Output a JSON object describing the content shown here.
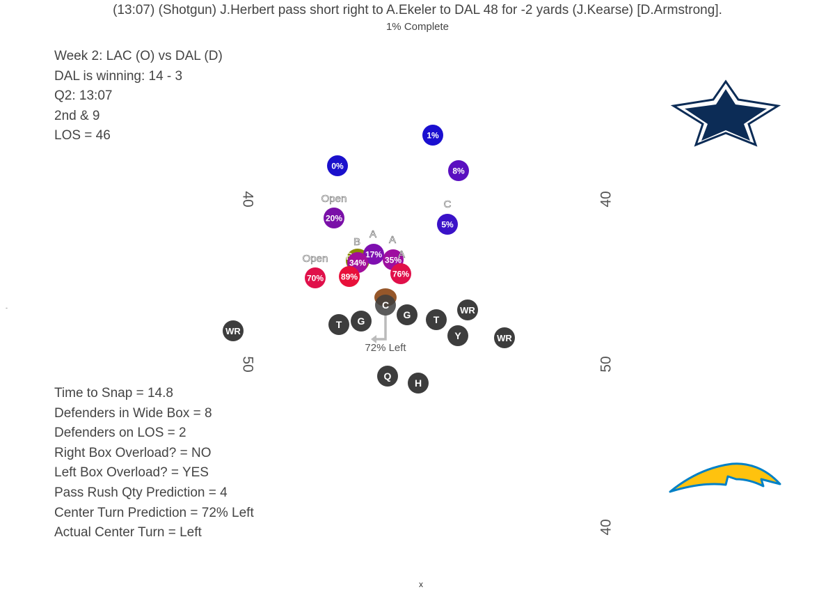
{
  "play_description": "(13:07) (Shotgun) J.Herbert pass short right to A.Ekeler to DAL 48 for -2 yards (J.Kearse) [D.Armstrong].",
  "progress_text": "1% Complete",
  "game_info": {
    "week": "Week 2: LAC (O) vs DAL (D)",
    "score": "DAL is winning: 14 - 3",
    "clock": "Q2: 13:07",
    "down": "2nd & 9",
    "los": "LOS = 46"
  },
  "stats": {
    "time_to_snap": "Time to Snap = 14.8",
    "defenders_wide_box": "Defenders in Wide Box = 8",
    "defenders_los": "Defenders on LOS = 2",
    "right_box_overload": "Right Box Overload? = NO",
    "left_box_overload": "Left Box Overload? = YES",
    "pass_rush_prediction": "Pass Rush Qty Prediction = 4",
    "center_turn_prediction": "Center Turn Prediction = 72% Left",
    "actual_center_turn": "Actual Center Turn = Left"
  },
  "yard_markers": {
    "top_left": "40",
    "top_right": "40",
    "mid_left": "50",
    "mid_right": "50",
    "bottom_right": "40"
  },
  "center_turn_label": "72% Left",
  "tick_label": "-",
  "x_mark": "x",
  "colors": {
    "offense": "#3d3d3d",
    "football": "#8B4513",
    "cowboys_navy": "#0c2c56",
    "chargers_gold": "#ffc20e",
    "chargers_blue": "#0080c6"
  },
  "defenders": [
    {
      "pct": "1%",
      "color": "#1a0fd0"
    },
    {
      "pct": "0%",
      "color": "#1a10cc"
    },
    {
      "pct": "8%",
      "color": "#5a0fc0"
    },
    {
      "pct": "20%",
      "color": "#7a10a8",
      "gap": "Open"
    },
    {
      "pct": "5%",
      "color": "#3a12c8",
      "gap": "C"
    },
    {
      "pct": "17%",
      "color": "#7e0fb0",
      "gap": "A"
    },
    {
      "pct": "35%",
      "color": "#9e0ea0",
      "gap": "A"
    },
    {
      "pct": "34%",
      "color": "#a20e9a",
      "gap": "B"
    },
    {
      "pct": "76%",
      "color": "#e0104a",
      "gap": "A"
    },
    {
      "pct": "70%",
      "color": "#e0104a",
      "gap": "Open"
    },
    {
      "pct": "89%",
      "color": "#e8103a"
    }
  ],
  "defender_aux_gap": "B",
  "offense": [
    {
      "pos": "WR"
    },
    {
      "pos": "T"
    },
    {
      "pos": "G"
    },
    {
      "pos": "C"
    },
    {
      "pos": "G"
    },
    {
      "pos": "T"
    },
    {
      "pos": "WR"
    },
    {
      "pos": "Y"
    },
    {
      "pos": "WR"
    },
    {
      "pos": "Q"
    },
    {
      "pos": "H"
    }
  ]
}
